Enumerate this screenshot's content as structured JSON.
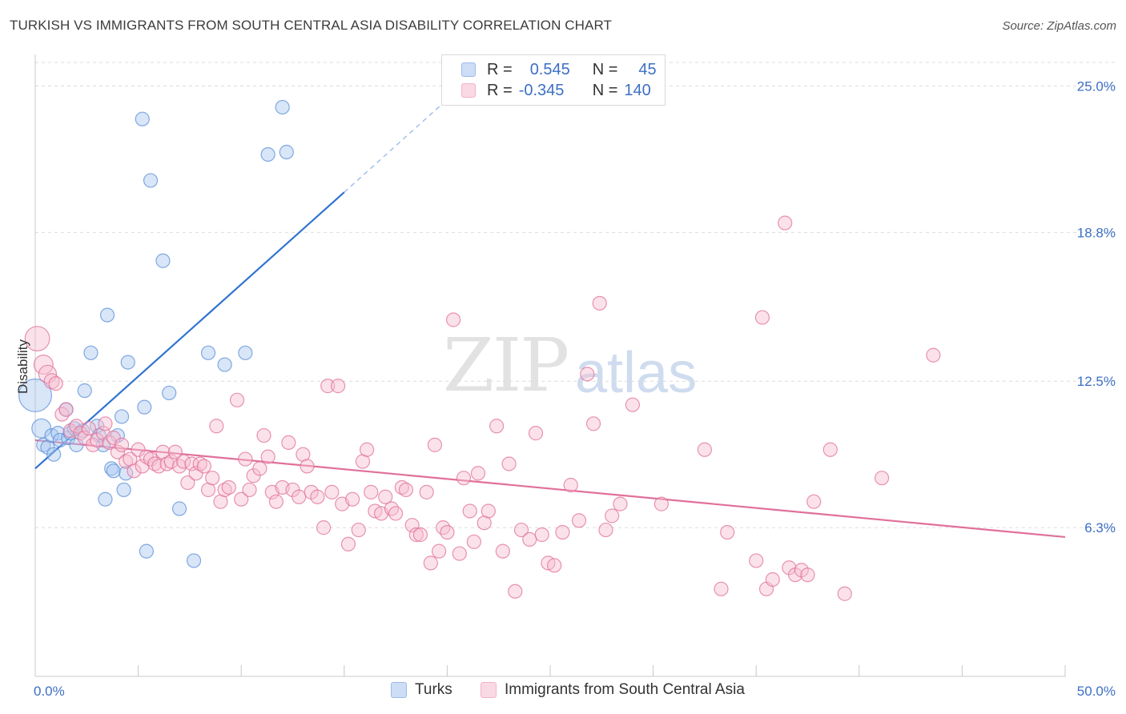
{
  "header": {
    "title": "TURKISH VS IMMIGRANTS FROM SOUTH CENTRAL ASIA DISABILITY CORRELATION CHART",
    "source": "Source: ZipAtlas.com"
  },
  "watermark": {
    "zip": "ZIP",
    "atlas": "atlas"
  },
  "legend": {
    "rows": [
      {
        "r_label": "R =",
        "r_value": "0.545",
        "n_label": "N =",
        "n_value": "45",
        "color": "#9bbcec"
      },
      {
        "r_label": "R =",
        "r_value": "-0.345",
        "n_label": "N =",
        "n_value": "140",
        "color": "#f4b3c8"
      }
    ]
  },
  "bottom_legend": [
    {
      "label": "Turks",
      "color": "#9bbcec"
    },
    {
      "label": "Immigrants from South Central Asia",
      "color": "#f4b3c8"
    }
  ],
  "chart_data": {
    "type": "scatter",
    "ylabel": "Disability",
    "xlim": [
      0,
      50
    ],
    "ylim": [
      0,
      26.2
    ],
    "y_ticks": [
      {
        "value": 6.3,
        "label": "6.3%"
      },
      {
        "value": 12.5,
        "label": "12.5%"
      },
      {
        "value": 18.8,
        "label": "18.8%"
      },
      {
        "value": 25.0,
        "label": "25.0%"
      }
    ],
    "x_tick_labels": [
      {
        "value": 0,
        "label": "0.0%"
      },
      {
        "value": 50,
        "label": "50.0%"
      }
    ],
    "grid": true,
    "series": [
      {
        "name": "Turks",
        "color": "#5b8fd8",
        "fill": "#a9c7ef",
        "trend": {
          "x1": 0,
          "y1": 8.8,
          "x2": 15,
          "y2": 20.5,
          "dash_to_x": 22,
          "dash_to_y": 26.0
        },
        "points": [
          [
            0,
            11.9,
            2.4
          ],
          [
            0.3,
            10.5,
            1.4
          ],
          [
            0.4,
            9.8,
            1.0
          ],
          [
            0.6,
            9.7,
            1.0
          ],
          [
            0.8,
            10.2,
            1.0
          ],
          [
            0.9,
            9.4,
            1.0
          ],
          [
            1.1,
            10.3,
            1.0
          ],
          [
            1.2,
            10.0,
            1.0
          ],
          [
            1.5,
            11.3,
            1.0
          ],
          [
            1.6,
            10.1,
            1.0
          ],
          [
            1.7,
            10.3,
            1.0
          ],
          [
            1.9,
            10.5,
            1.0
          ],
          [
            2.0,
            9.8,
            1.0
          ],
          [
            2.3,
            10.4,
            1.0
          ],
          [
            2.4,
            12.1,
            1.0
          ],
          [
            2.7,
            13.7,
            1.0
          ],
          [
            3.0,
            10.6,
            1.0
          ],
          [
            3.1,
            10.2,
            1.0
          ],
          [
            3.3,
            9.8,
            1.0
          ],
          [
            3.4,
            7.5,
            1.0
          ],
          [
            3.5,
            15.3,
            1.0
          ],
          [
            3.7,
            8.8,
            1.0
          ],
          [
            3.8,
            8.7,
            1.0
          ],
          [
            4.0,
            10.2,
            1.0
          ],
          [
            4.2,
            11.0,
            1.0
          ],
          [
            4.3,
            7.9,
            1.0
          ],
          [
            4.4,
            8.6,
            1.0
          ],
          [
            4.5,
            13.3,
            1.0
          ],
          [
            5.2,
            23.6,
            1.0
          ],
          [
            5.3,
            11.4,
            1.0
          ],
          [
            5.4,
            5.3,
            1.0
          ],
          [
            5.6,
            21.0,
            1.0
          ],
          [
            6.2,
            17.6,
            1.0
          ],
          [
            6.5,
            12.0,
            1.0
          ],
          [
            7.0,
            7.1,
            1.0
          ],
          [
            7.7,
            4.9,
            1.0
          ],
          [
            8.4,
            13.7,
            1.0
          ],
          [
            9.2,
            13.2,
            1.0
          ],
          [
            10.2,
            13.7,
            1.0
          ],
          [
            11.3,
            22.1,
            1.0
          ],
          [
            12.0,
            24.1,
            1.0
          ],
          [
            12.2,
            22.2,
            1.0
          ]
        ]
      },
      {
        "name": "Immigrants from South Central Asia",
        "color": "#e0709a",
        "fill": "#f7bfd0",
        "trend": {
          "x1": 0,
          "y1": 10.0,
          "x2": 50,
          "y2": 5.9
        },
        "points": [
          [
            0.1,
            14.3,
            1.8
          ],
          [
            0.4,
            13.2,
            1.4
          ],
          [
            0.6,
            12.8,
            1.3
          ],
          [
            0.8,
            12.5,
            1.1
          ],
          [
            1.0,
            12.4,
            1.0
          ],
          [
            1.3,
            11.1,
            1.0
          ],
          [
            1.5,
            11.3,
            1.0
          ],
          [
            1.7,
            10.4,
            1.0
          ],
          [
            2.0,
            10.6,
            1.0
          ],
          [
            2.2,
            10.3,
            1.0
          ],
          [
            2.4,
            10.1,
            1.0
          ],
          [
            2.6,
            10.5,
            1.0
          ],
          [
            2.8,
            9.8,
            1.0
          ],
          [
            3.0,
            10.0,
            1.0
          ],
          [
            3.3,
            10.3,
            1.0
          ],
          [
            3.4,
            10.7,
            1.0
          ],
          [
            3.6,
            9.9,
            1.0
          ],
          [
            3.8,
            10.1,
            1.0
          ],
          [
            4.0,
            9.5,
            1.0
          ],
          [
            4.2,
            9.8,
            1.0
          ],
          [
            4.4,
            9.1,
            1.0
          ],
          [
            4.6,
            9.2,
            1.0
          ],
          [
            4.8,
            8.7,
            1.0
          ],
          [
            5.0,
            9.6,
            1.0
          ],
          [
            5.2,
            8.9,
            1.0
          ],
          [
            5.4,
            9.3,
            1.0
          ],
          [
            5.6,
            9.2,
            1.0
          ],
          [
            5.8,
            9.0,
            1.0
          ],
          [
            6.0,
            8.9,
            1.0
          ],
          [
            6.2,
            9.5,
            1.0
          ],
          [
            6.4,
            9.0,
            1.0
          ],
          [
            6.6,
            9.1,
            1.0
          ],
          [
            6.8,
            9.5,
            1.0
          ],
          [
            7.0,
            8.9,
            1.0
          ],
          [
            7.2,
            9.1,
            1.0
          ],
          [
            7.4,
            8.2,
            1.0
          ],
          [
            7.6,
            9.0,
            1.0
          ],
          [
            7.8,
            8.6,
            1.0
          ],
          [
            8.0,
            9.0,
            1.0
          ],
          [
            8.2,
            8.9,
            1.0
          ],
          [
            8.4,
            7.9,
            1.0
          ],
          [
            8.6,
            8.4,
            1.0
          ],
          [
            8.8,
            10.6,
            1.0
          ],
          [
            9.0,
            7.4,
            1.0
          ],
          [
            9.2,
            7.9,
            1.0
          ],
          [
            9.4,
            8.0,
            1.0
          ],
          [
            9.8,
            11.7,
            1.0
          ],
          [
            10.0,
            7.5,
            1.0
          ],
          [
            10.2,
            9.2,
            1.0
          ],
          [
            10.4,
            7.9,
            1.0
          ],
          [
            10.6,
            8.5,
            1.0
          ],
          [
            10.9,
            8.8,
            1.0
          ],
          [
            11.1,
            10.2,
            1.0
          ],
          [
            11.3,
            9.3,
            1.0
          ],
          [
            11.5,
            7.8,
            1.0
          ],
          [
            11.7,
            7.4,
            1.0
          ],
          [
            12.0,
            8.0,
            1.0
          ],
          [
            12.3,
            9.9,
            1.0
          ],
          [
            12.5,
            7.9,
            1.0
          ],
          [
            12.8,
            7.6,
            1.0
          ],
          [
            13.0,
            9.4,
            1.0
          ],
          [
            13.2,
            8.9,
            1.0
          ],
          [
            13.4,
            7.8,
            1.0
          ],
          [
            13.7,
            7.6,
            1.0
          ],
          [
            14.0,
            6.3,
            1.0
          ],
          [
            14.2,
            12.3,
            1.0
          ],
          [
            14.4,
            7.8,
            1.0
          ],
          [
            14.7,
            12.3,
            1.0
          ],
          [
            14.9,
            7.3,
            1.0
          ],
          [
            15.2,
            5.6,
            1.0
          ],
          [
            15.4,
            7.5,
            1.0
          ],
          [
            15.7,
            6.2,
            1.0
          ],
          [
            15.9,
            9.1,
            1.0
          ],
          [
            16.1,
            9.6,
            1.0
          ],
          [
            16.3,
            7.8,
            1.0
          ],
          [
            16.5,
            7.0,
            1.0
          ],
          [
            16.8,
            6.9,
            1.0
          ],
          [
            17.0,
            7.6,
            1.0
          ],
          [
            17.3,
            7.1,
            1.0
          ],
          [
            17.5,
            6.9,
            1.0
          ],
          [
            17.8,
            8.0,
            1.0
          ],
          [
            18.0,
            7.9,
            1.0
          ],
          [
            18.3,
            6.4,
            1.0
          ],
          [
            18.5,
            6.0,
            1.0
          ],
          [
            18.7,
            6.0,
            1.0
          ],
          [
            19.0,
            7.8,
            1.0
          ],
          [
            19.2,
            4.8,
            1.0
          ],
          [
            19.4,
            9.8,
            1.0
          ],
          [
            19.6,
            5.3,
            1.0
          ],
          [
            19.8,
            6.3,
            1.0
          ],
          [
            20.0,
            6.1,
            1.0
          ],
          [
            20.3,
            15.1,
            1.0
          ],
          [
            20.6,
            5.2,
            1.0
          ],
          [
            20.8,
            8.4,
            1.0
          ],
          [
            21.1,
            7.0,
            1.0
          ],
          [
            21.3,
            5.7,
            1.0
          ],
          [
            21.5,
            8.6,
            1.0
          ],
          [
            21.8,
            6.5,
            1.0
          ],
          [
            22.0,
            7.0,
            1.0
          ],
          [
            22.4,
            10.6,
            1.0
          ],
          [
            22.7,
            5.3,
            1.0
          ],
          [
            23.0,
            9.0,
            1.0
          ],
          [
            23.3,
            3.6,
            1.0
          ],
          [
            23.6,
            6.2,
            1.0
          ],
          [
            24.0,
            5.8,
            1.0
          ],
          [
            24.3,
            10.3,
            1.0
          ],
          [
            24.6,
            6.0,
            1.0
          ],
          [
            24.9,
            4.8,
            1.0
          ],
          [
            25.2,
            4.7,
            1.0
          ],
          [
            25.6,
            6.1,
            1.0
          ],
          [
            26.0,
            8.1,
            1.0
          ],
          [
            26.4,
            6.6,
            1.0
          ],
          [
            26.8,
            12.8,
            1.0
          ],
          [
            27.1,
            10.7,
            1.0
          ],
          [
            27.4,
            15.8,
            1.0
          ],
          [
            27.7,
            6.2,
            1.0
          ],
          [
            28.0,
            6.8,
            1.0
          ],
          [
            28.4,
            7.3,
            1.0
          ],
          [
            29.0,
            11.5,
            1.0
          ],
          [
            30.4,
            7.3,
            1.0
          ],
          [
            32.5,
            9.6,
            1.0
          ],
          [
            33.3,
            3.7,
            1.0
          ],
          [
            33.6,
            6.1,
            1.0
          ],
          [
            35.0,
            4.9,
            1.0
          ],
          [
            35.3,
            15.2,
            1.0
          ],
          [
            35.5,
            3.7,
            1.0
          ],
          [
            35.8,
            4.1,
            1.0
          ],
          [
            36.4,
            19.2,
            1.0
          ],
          [
            36.6,
            4.6,
            1.0
          ],
          [
            36.9,
            4.3,
            1.0
          ],
          [
            37.2,
            4.5,
            1.0
          ],
          [
            37.5,
            4.3,
            1.0
          ],
          [
            37.8,
            7.4,
            1.0
          ],
          [
            38.6,
            9.6,
            1.0
          ],
          [
            39.3,
            3.5,
            1.0
          ],
          [
            41.1,
            8.4,
            1.0
          ],
          [
            43.6,
            13.6,
            1.0
          ]
        ]
      }
    ]
  }
}
